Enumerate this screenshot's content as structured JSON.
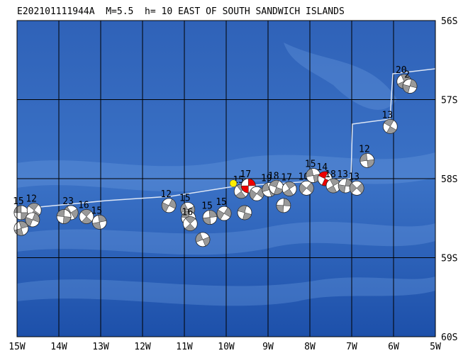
{
  "title": "E202101111944A  M=5.5  h= 10 EAST OF SOUTH SANDWICH ISLANDS",
  "xlim": [
    -15,
    -5
  ],
  "ylim": [
    -56,
    -60
  ],
  "xticks": [
    {
      "value": -15,
      "label": "15W"
    },
    {
      "value": -14,
      "label": "14W"
    },
    {
      "value": -13,
      "label": "13W"
    },
    {
      "value": -12,
      "label": "12W"
    },
    {
      "value": -11,
      "label": "11W"
    },
    {
      "value": -10,
      "label": "10W"
    },
    {
      "value": -9,
      "label": "9W"
    },
    {
      "value": -8,
      "label": "8W"
    },
    {
      "value": -7,
      "label": "7W"
    },
    {
      "value": -6,
      "label": "6W"
    },
    {
      "value": -5,
      "label": "5W"
    }
  ],
  "yticks": [
    {
      "value": -56,
      "label": "56S"
    },
    {
      "value": -57,
      "label": "57S"
    },
    {
      "value": -58,
      "label": "58S"
    },
    {
      "value": -59,
      "label": "59S"
    },
    {
      "value": -60,
      "label": "60S"
    }
  ],
  "epicenter": {
    "lon": -9.83,
    "lat": -58.06,
    "color": "#ffee00"
  },
  "events": [
    {
      "lon": -14.9,
      "lat": -58.43,
      "depth": 15,
      "color": "#999999"
    },
    {
      "lon": -14.59,
      "lat": -58.4,
      "depth": 12,
      "color": "#999999"
    },
    {
      "lon": -14.9,
      "lat": -58.63,
      "depth": null,
      "color": "#999999"
    },
    {
      "lon": -14.63,
      "lat": -58.52,
      "depth": null,
      "color": "#999999"
    },
    {
      "lon": -13.71,
      "lat": -58.43,
      "depth": 23,
      "color": "#999999"
    },
    {
      "lon": -13.88,
      "lat": -58.48,
      "depth": null,
      "color": "#999999"
    },
    {
      "lon": -13.34,
      "lat": -58.48,
      "depth": 16,
      "color": "#999999"
    },
    {
      "lon": -13.03,
      "lat": -58.55,
      "depth": 15,
      "color": "#999999"
    },
    {
      "lon": -11.37,
      "lat": -58.34,
      "depth": 12,
      "color": "#999999"
    },
    {
      "lon": -10.92,
      "lat": -58.39,
      "depth": 15,
      "color": "#999999"
    },
    {
      "lon": -10.9,
      "lat": -58.5,
      "depth": null,
      "color": "#999999"
    },
    {
      "lon": -10.86,
      "lat": -58.57,
      "depth": 16,
      "color": "#999999"
    },
    {
      "lon": -10.39,
      "lat": -58.49,
      "depth": 15,
      "color": "#999999"
    },
    {
      "lon": -10.05,
      "lat": -58.44,
      "depth": 15,
      "color": "#999999"
    },
    {
      "lon": -10.56,
      "lat": -58.77,
      "depth": null,
      "color": "#999999"
    },
    {
      "lon": -9.56,
      "lat": -58.43,
      "depth": null,
      "color": "#999999"
    },
    {
      "lon": -9.64,
      "lat": -58.16,
      "depth": 15,
      "color": "#999999"
    },
    {
      "lon": -9.47,
      "lat": -58.09,
      "depth": 17,
      "color": "#ee0000"
    },
    {
      "lon": -9.27,
      "lat": -58.19,
      "depth": null,
      "color": "#999999"
    },
    {
      "lon": -8.97,
      "lat": -58.14,
      "depth": 19,
      "color": "#999999"
    },
    {
      "lon": -8.8,
      "lat": -58.11,
      "depth": 18,
      "color": "#999999"
    },
    {
      "lon": -8.49,
      "lat": -58.13,
      "depth": 17,
      "color": "#999999"
    },
    {
      "lon": -8.63,
      "lat": -58.34,
      "depth": null,
      "color": "#999999"
    },
    {
      "lon": -8.08,
      "lat": -58.12,
      "depth": 10,
      "color": "#999999"
    },
    {
      "lon": -7.92,
      "lat": -57.96,
      "depth": 15,
      "color": "#999999"
    },
    {
      "lon": -7.64,
      "lat": -58.0,
      "depth": 14,
      "color": "#ee0000"
    },
    {
      "lon": -7.44,
      "lat": -58.09,
      "depth": 18,
      "color": "#999999"
    },
    {
      "lon": -7.15,
      "lat": -58.09,
      "depth": 13,
      "color": "#999999"
    },
    {
      "lon": -6.88,
      "lat": -58.12,
      "depth": 13,
      "color": "#999999"
    },
    {
      "lon": -6.63,
      "lat": -57.77,
      "depth": 12,
      "color": "#999999"
    },
    {
      "lon": -6.08,
      "lat": -57.34,
      "depth": 13,
      "color": "#999999"
    },
    {
      "lon": -5.75,
      "lat": -56.77,
      "depth": 20,
      "color": "#999999"
    },
    {
      "lon": -5.61,
      "lat": -56.83,
      "depth": 2,
      "color": "#999999"
    }
  ]
}
